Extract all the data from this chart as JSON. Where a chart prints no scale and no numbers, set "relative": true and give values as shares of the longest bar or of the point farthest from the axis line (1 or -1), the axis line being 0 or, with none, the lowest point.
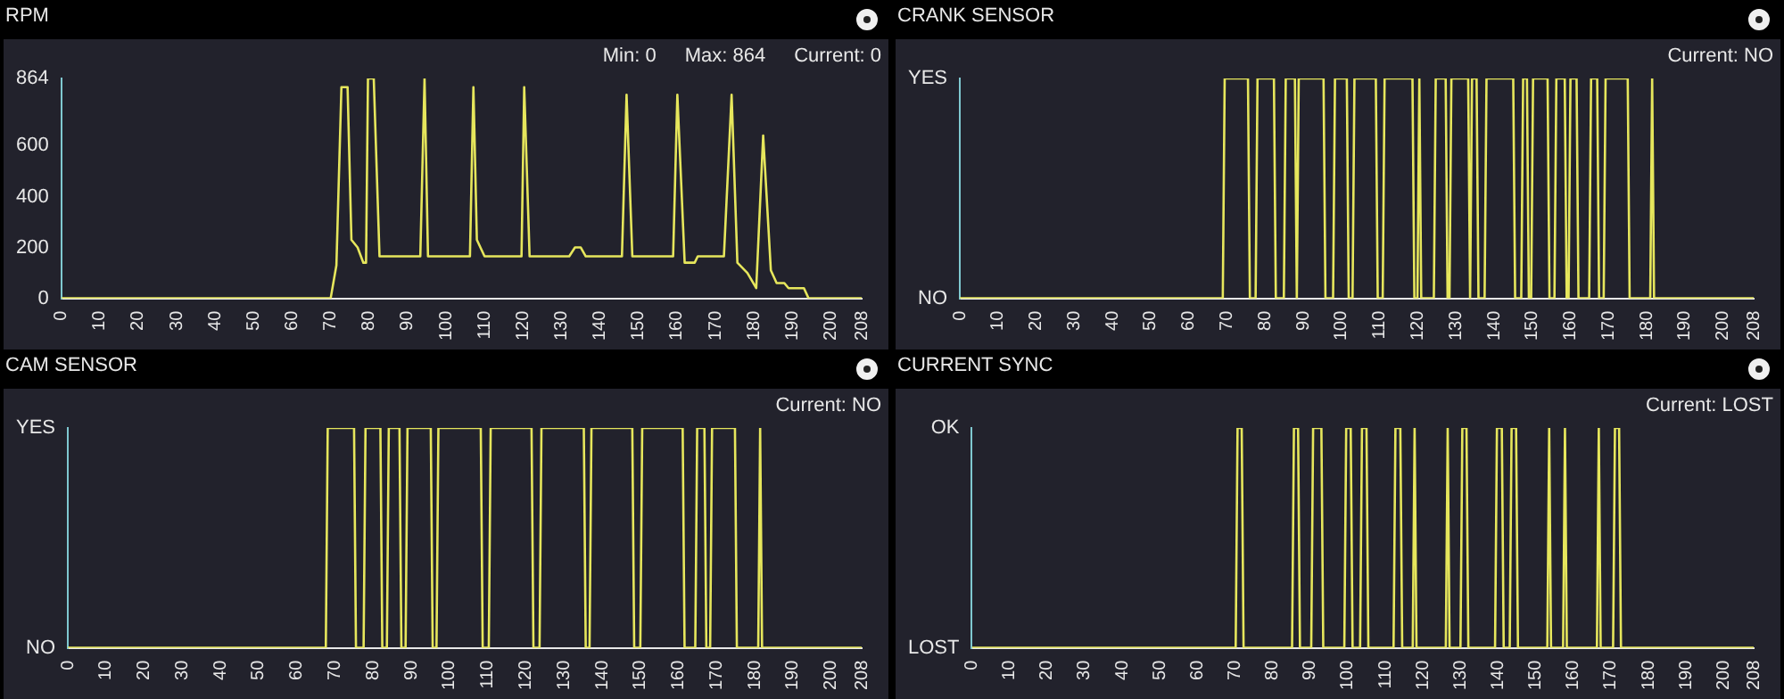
{
  "chart_data": [
    {
      "type": "line",
      "title": "RPM",
      "annotations": [
        "Min: 0",
        "Max: 864",
        "Current: 0"
      ],
      "color": "#e6e65c",
      "grid": false,
      "legend": false,
      "marker": "none",
      "xlim": [
        0,
        208
      ],
      "xticks": [
        0,
        10,
        20,
        30,
        40,
        50,
        60,
        70,
        80,
        90,
        100,
        110,
        120,
        130,
        140,
        150,
        160,
        170,
        180,
        190,
        200,
        208
      ],
      "ylim": [
        0,
        864
      ],
      "yticks": [
        0,
        200,
        400,
        600,
        864
      ],
      "x": [
        0,
        70,
        71.5,
        72.8,
        74.4,
        75.4,
        77,
        78.5,
        79.2,
        79.7,
        81.2,
        82.7,
        93.3,
        94.4,
        95.3,
        106.2,
        107.1,
        108,
        110,
        119.6,
        120.3,
        121.7,
        132,
        133.5,
        135,
        136.3,
        145.7,
        146.9,
        148.4,
        159,
        160.1,
        162,
        164.6,
        165.4,
        172.2,
        174.2,
        175.7,
        178.3,
        180.6,
        182.4,
        184.4,
        185.9,
        187.9,
        189,
        193,
        194.2,
        208
      ],
      "values": [
        0,
        0,
        130,
        830,
        830,
        230,
        200,
        140,
        140,
        864,
        864,
        165,
        165,
        864,
        165,
        165,
        830,
        230,
        165,
        165,
        830,
        165,
        165,
        200,
        200,
        165,
        165,
        800,
        165,
        165,
        800,
        140,
        140,
        165,
        165,
        800,
        140,
        100,
        40,
        640,
        110,
        60,
        60,
        40,
        40,
        0,
        0
      ]
    },
    {
      "type": "line",
      "title": "CRANK SENSOR",
      "annotations": [
        "Current: NO"
      ],
      "color": "#e6e65c",
      "grid": false,
      "legend": false,
      "marker": "none",
      "xlim": [
        0,
        208
      ],
      "xticks": [
        0,
        10,
        20,
        30,
        40,
        50,
        60,
        70,
        80,
        90,
        100,
        110,
        120,
        130,
        140,
        150,
        160,
        170,
        180,
        190,
        200,
        208
      ],
      "relative": true,
      "y_categories": [
        "YES",
        "NO"
      ],
      "x": [
        0,
        68.9,
        69.4,
        75.5,
        76,
        77.5,
        78,
        82.3,
        82.8,
        84.9,
        85.4,
        87.8,
        88.3,
        88.8,
        95.3,
        95.8,
        97.8,
        98.3,
        101.4,
        101.9,
        102.9,
        103.4,
        109,
        109.5,
        110.8,
        111.3,
        118.6,
        119.1,
        119.9,
        120.4,
        120.9,
        124.2,
        124.7,
        127.3,
        127.8,
        128.3,
        128.8,
        133.2,
        133.7,
        134.2,
        135.4,
        135.9,
        137.5,
        138,
        145,
        145.5,
        147.1,
        147.6,
        148.6,
        149.1,
        149.7,
        150.2,
        154,
        154.5,
        155.8,
        156.3,
        158.5,
        159,
        159.5,
        160,
        161.6,
        162.1,
        164.9,
        165.4,
        167,
        167.5,
        168.7,
        169.2,
        175,
        175.5,
        180.9,
        181.4,
        181.9,
        208
      ],
      "values": [
        0,
        0,
        1,
        1,
        0,
        0,
        1,
        1,
        0,
        0,
        1,
        1,
        0,
        1,
        1,
        0,
        0,
        1,
        1,
        0,
        0,
        1,
        1,
        0,
        0,
        1,
        1,
        0,
        0,
        1,
        0,
        0,
        1,
        1,
        0,
        0,
        1,
        1,
        0,
        1,
        1,
        0,
        0,
        1,
        1,
        0,
        0,
        1,
        1,
        0,
        0,
        1,
        1,
        0,
        0,
        1,
        1,
        0,
        0,
        1,
        1,
        0,
        0,
        1,
        1,
        0,
        0,
        1,
        1,
        0,
        0,
        1,
        0,
        0
      ]
    },
    {
      "type": "line",
      "title": "CAM SENSOR",
      "annotations": [
        "Current: NO"
      ],
      "color": "#e6e65c",
      "grid": false,
      "legend": false,
      "marker": "none",
      "xlim": [
        0,
        208
      ],
      "xticks": [
        0,
        10,
        20,
        30,
        40,
        50,
        60,
        70,
        80,
        90,
        100,
        110,
        120,
        130,
        140,
        150,
        160,
        170,
        180,
        190,
        200,
        208
      ],
      "relative": true,
      "y_categories": [
        "YES",
        "NO"
      ],
      "x": [
        0,
        67.6,
        68.1,
        75,
        75.5,
        77.5,
        78,
        81.9,
        82.4,
        83.6,
        84.1,
        86.9,
        87.4,
        88.5,
        89,
        95.1,
        95.6,
        96.6,
        97.1,
        108.2,
        108.7,
        110.3,
        110.8,
        121.5,
        122,
        123.6,
        124.1,
        135.2,
        135.7,
        136.7,
        137.2,
        147.9,
        148.4,
        150,
        150.5,
        161.1,
        161.6,
        164.4,
        164.9,
        166.8,
        167.3,
        168.3,
        168.8,
        174.8,
        175.3,
        180.9,
        181.4,
        181.9,
        208
      ],
      "values": [
        0,
        0,
        1,
        1,
        0,
        0,
        1,
        1,
        0,
        0,
        1,
        1,
        0,
        0,
        1,
        1,
        0,
        0,
        1,
        1,
        0,
        0,
        1,
        1,
        0,
        0,
        1,
        1,
        0,
        0,
        1,
        1,
        0,
        0,
        1,
        1,
        0,
        0,
        1,
        1,
        0,
        0,
        1,
        1,
        0,
        0,
        1,
        0,
        0
      ]
    },
    {
      "type": "line",
      "title": "CURRENT SYNC",
      "annotations": [
        "Current: LOST"
      ],
      "color": "#e6e65c",
      "grid": false,
      "legend": false,
      "marker": "none",
      "xlim": [
        0,
        208
      ],
      "xticks": [
        0,
        10,
        20,
        30,
        40,
        50,
        60,
        70,
        80,
        90,
        100,
        110,
        120,
        130,
        140,
        150,
        160,
        170,
        180,
        190,
        200,
        208
      ],
      "relative": true,
      "y_categories": [
        "OK",
        "LOST"
      ],
      "x": [
        0,
        70.2,
        70.7,
        71.8,
        72.3,
        85.2,
        85.7,
        86.8,
        87.3,
        90.3,
        90.8,
        93,
        93.5,
        99.1,
        99.6,
        100.8,
        101.3,
        103.3,
        103.8,
        105,
        105.5,
        112.2,
        112.7,
        114,
        114.5,
        117.3,
        117.8,
        118.3,
        126.1,
        126.6,
        127.1,
        130,
        130.5,
        131.6,
        132.1,
        139.2,
        139.7,
        141,
        141.5,
        143.1,
        143.6,
        144.8,
        145.3,
        153.1,
        153.6,
        154.1,
        157.3,
        157.8,
        158.3,
        166.3,
        166.8,
        167.3,
        170.6,
        171.1,
        172.2,
        172.7,
        208
      ],
      "values": [
        0,
        0,
        1,
        1,
        0,
        0,
        1,
        1,
        0,
        0,
        1,
        1,
        0,
        0,
        1,
        1,
        0,
        0,
        1,
        1,
        0,
        0,
        1,
        1,
        0,
        0,
        1,
        0,
        0,
        1,
        0,
        0,
        1,
        1,
        0,
        0,
        1,
        1,
        0,
        0,
        1,
        1,
        0,
        0,
        1,
        0,
        0,
        1,
        0,
        0,
        1,
        0,
        0,
        1,
        1,
        0,
        0
      ]
    }
  ]
}
